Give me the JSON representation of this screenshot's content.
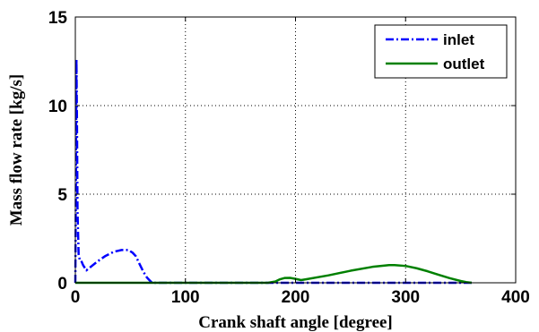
{
  "chart_data": {
    "type": "line",
    "xlabel": "Crank shaft angle [degree]",
    "ylabel": "Mass flow rate [kg/s]",
    "xlim": [
      0,
      400
    ],
    "ylim": [
      0,
      15
    ],
    "xticks": [
      "0",
      "100",
      "200",
      "300",
      "400"
    ],
    "yticks": [
      "0",
      "5",
      "10",
      "15"
    ],
    "grid": true,
    "legend_position": "top-right",
    "series": [
      {
        "name": "inlet",
        "color": "#0000ff",
        "line_style": "dash-dot",
        "x": [
          0,
          0.5,
          1,
          1.5,
          2,
          3,
          4,
          5,
          7,
          10,
          14,
          20,
          27,
          35,
          42,
          48,
          52,
          55,
          58,
          62,
          65,
          68,
          70,
          72,
          100,
          150,
          200,
          250,
          300,
          350,
          360
        ],
        "y": [
          0,
          5,
          12.6,
          9,
          4,
          1.6,
          1.3,
          1.3,
          1.0,
          0.7,
          0.9,
          1.2,
          1.5,
          1.75,
          1.85,
          1.85,
          1.7,
          1.5,
          1.1,
          0.6,
          0.3,
          0.1,
          0,
          0,
          0,
          0,
          0,
          0,
          0,
          0,
          0
        ]
      },
      {
        "name": "outlet",
        "color": "#008000",
        "line_style": "solid",
        "x": [
          0,
          100,
          175,
          182,
          186,
          190,
          195,
          200,
          205,
          210,
          230,
          250,
          270,
          285,
          290,
          300,
          310,
          320,
          330,
          340,
          350,
          355,
          360
        ],
        "y": [
          0,
          0,
          0,
          0.08,
          0.2,
          0.27,
          0.28,
          0.22,
          0.15,
          0.2,
          0.42,
          0.68,
          0.9,
          1.0,
          1.0,
          0.95,
          0.82,
          0.65,
          0.45,
          0.26,
          0.1,
          0.04,
          0
        ]
      }
    ]
  }
}
